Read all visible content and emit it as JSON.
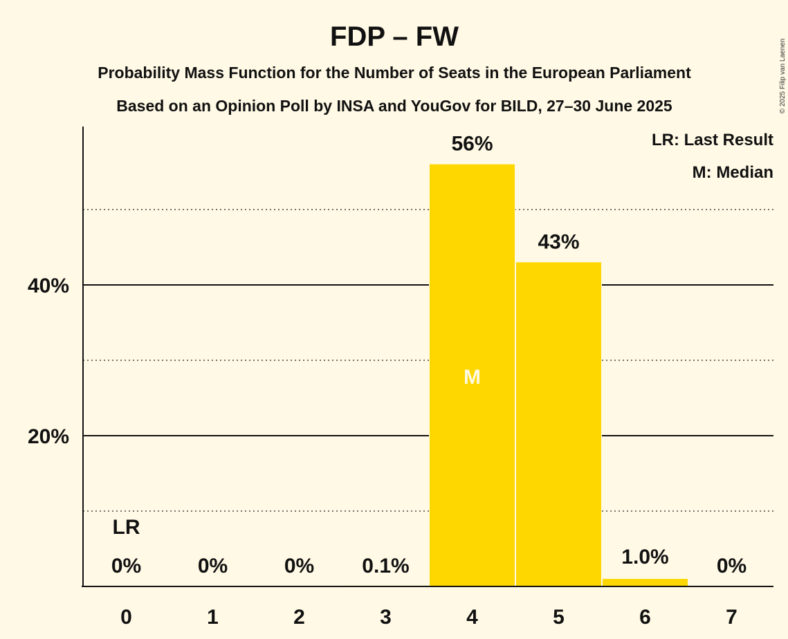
{
  "chart_data": {
    "type": "bar",
    "title": "FDP – FW",
    "subtitle_line1": "Probability Mass Function for the Number of Seats in the European Parliament",
    "subtitle_line2": "Based on an Opinion Poll by INSA and YouGov for BILD, 27–30 June 2025",
    "categories": [
      "0",
      "1",
      "2",
      "3",
      "4",
      "5",
      "6",
      "7"
    ],
    "values": [
      0,
      0,
      0,
      0.1,
      56,
      43,
      1.0,
      0
    ],
    "value_labels": [
      "0%",
      "0%",
      "0%",
      "0.1%",
      "56%",
      "43%",
      "1.0%",
      "0%"
    ],
    "y_ticks": [
      {
        "value": 20,
        "label": "20%"
      },
      {
        "value": 40,
        "label": "40%"
      }
    ],
    "minor_gridlines": [
      10,
      30,
      50
    ],
    "ylim": [
      0,
      61
    ],
    "last_result_index": 0,
    "last_result_marker": "LR",
    "median_index": 4,
    "median_marker": "M",
    "legend": [
      "LR: Last Result",
      "M: Median"
    ],
    "legend_position": "top-right",
    "bar_color": "#FFD700",
    "copyright": "© 2025 Filip van Laenen"
  }
}
